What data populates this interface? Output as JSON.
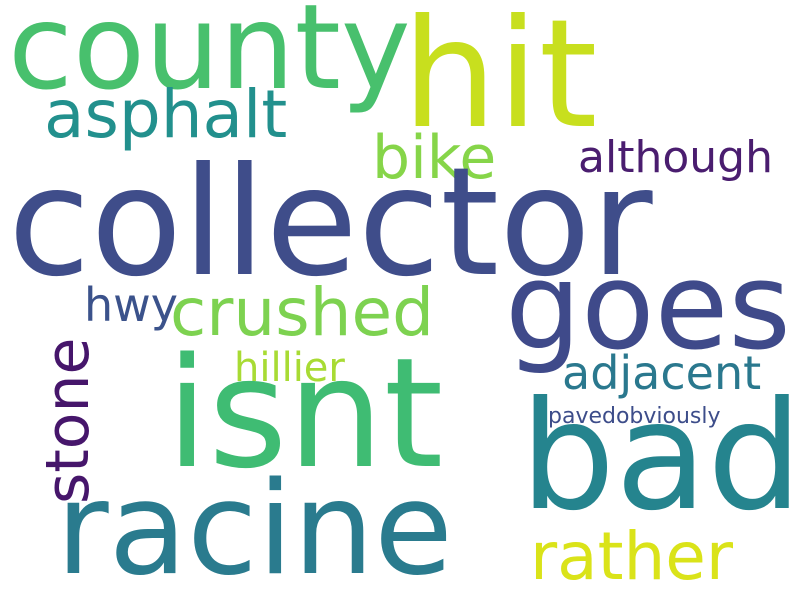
{
  "words": {
    "collector": "collector",
    "isnt": "isnt",
    "hit": "hit",
    "county": "county",
    "bad": "bad",
    "racine": "racine",
    "goes": "goes",
    "asphalt": "asphalt",
    "crushed": "crushed",
    "rather": "rather",
    "bike": "bike",
    "stone": "stone",
    "adjacent": "adjacent",
    "although": "although",
    "hwy": "hwy",
    "hillier": "hillier",
    "pavedobviously": "pavedobviously"
  },
  "colors": {
    "background": "#ffffff",
    "collector": "#3f4d8a",
    "isnt": "#3fbc73",
    "hit": "#c8df1e",
    "county": "#48c06d",
    "bad": "#25848e",
    "racine": "#2a7b8e",
    "goes": "#3f4a8a",
    "asphalt": "#22908d",
    "crushed": "#7dd250",
    "rather": "#dae319",
    "bike": "#86d549",
    "stone": "#46166b",
    "adjacent": "#2a788e",
    "although": "#4a1d6f",
    "hwy": "#3b528b",
    "hillier": "#a8db34",
    "pavedobviously": "#3d4d8a"
  }
}
